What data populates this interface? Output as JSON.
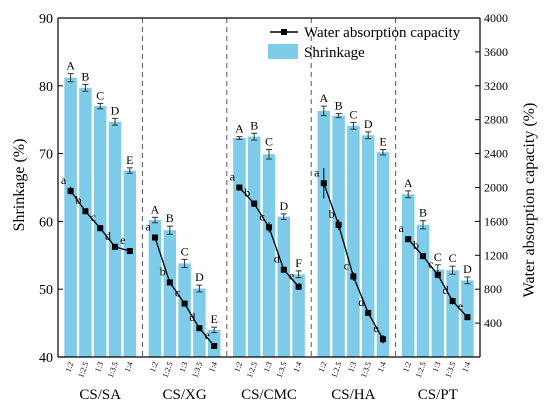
{
  "chart_data": {
    "type": "bar",
    "ylabel_left": "Shrinkage (%)",
    "ylabel_right": "Water absorption capacity (%)",
    "left_ylim": [
      40,
      90
    ],
    "left_ticks": [
      "40",
      "50",
      "60",
      "70",
      "80",
      "90"
    ],
    "right_ylim": [
      0,
      4000
    ],
    "right_ticks": [
      "400",
      "800",
      "1200",
      "1600",
      "2000",
      "2400",
      "2800",
      "3200",
      "3600",
      "4000"
    ],
    "ratio_labels": [
      "1:2",
      "1:2.5",
      "1:3",
      "1:3.5",
      "1:4"
    ],
    "legend": {
      "line": "Water absorption capacity",
      "bar": "Shrinkage"
    },
    "colors": {
      "bar": "#7ecbea",
      "line": "#000000",
      "separator": "#555555"
    },
    "groups": [
      {
        "name": "CS/SA",
        "shrinkage": [
          81.2,
          79.7,
          77.0,
          74.7,
          67.5
        ],
        "shrinkage_err": [
          0.6,
          0.5,
          0.4,
          0.5,
          0.4
        ],
        "shrinkage_letters": [
          "A",
          "B",
          "C",
          "D",
          "E"
        ],
        "water": [
          1960,
          1720,
          1520,
          1300,
          1250
        ],
        "water_err": [
          50,
          30,
          25,
          20,
          20
        ],
        "water_letters": [
          "a",
          "b",
          "c",
          "d",
          "e"
        ]
      },
      {
        "name": "CS/XG",
        "shrinkage": [
          60.2,
          58.7,
          53.8,
          50.1,
          44.0
        ],
        "shrinkage_err": [
          0.4,
          0.6,
          0.6,
          0.5,
          0.4
        ],
        "shrinkage_letters": [
          "A",
          "B",
          "C",
          "D",
          "E"
        ],
        "water": [
          1410,
          880,
          630,
          340,
          130
        ],
        "water_err": [
          30,
          25,
          25,
          25,
          20
        ],
        "water_letters": [
          "a",
          "b",
          "c",
          "d",
          "e"
        ]
      },
      {
        "name": "CS/CMC",
        "shrinkage": [
          72.3,
          72.5,
          69.9,
          60.7,
          52.2
        ],
        "shrinkage_err": [
          0.2,
          0.5,
          0.7,
          0.4,
          0.5
        ],
        "shrinkage_letters": [
          "A",
          "B",
          "C",
          "D",
          "F"
        ],
        "water": [
          2000,
          1810,
          1530,
          1030,
          830
        ],
        "water_err": [
          35,
          40,
          60,
          30,
          40
        ],
        "water_letters": [
          "a",
          "b",
          "c",
          "d",
          "e"
        ]
      },
      {
        "name": "CS/HA",
        "shrinkage": [
          76.3,
          75.6,
          74.1,
          72.7,
          70.2
        ],
        "shrinkage_err": [
          0.7,
          0.3,
          0.5,
          0.5,
          0.4
        ],
        "shrinkage_letters": [
          "A",
          "B",
          "C",
          "D",
          "E"
        ],
        "water": [
          2050,
          1560,
          950,
          520,
          210
        ],
        "water_err": [
          180,
          60,
          50,
          30,
          50
        ],
        "water_letters": [
          "a",
          "b",
          "c",
          "d",
          "e"
        ]
      },
      {
        "name": "CS/PT",
        "shrinkage": [
          64.0,
          59.5,
          52.9,
          52.8,
          51.3
        ],
        "shrinkage_err": [
          0.5,
          0.6,
          0.7,
          0.6,
          0.5
        ],
        "shrinkage_letters": [
          "A",
          "B",
          "C",
          "C",
          "D"
        ],
        "water": [
          1390,
          1190,
          970,
          660,
          470
        ],
        "water_err": [
          30,
          25,
          40,
          40,
          20
        ],
        "water_letters": [
          "a",
          "b",
          "c",
          "d",
          "e"
        ]
      }
    ]
  }
}
